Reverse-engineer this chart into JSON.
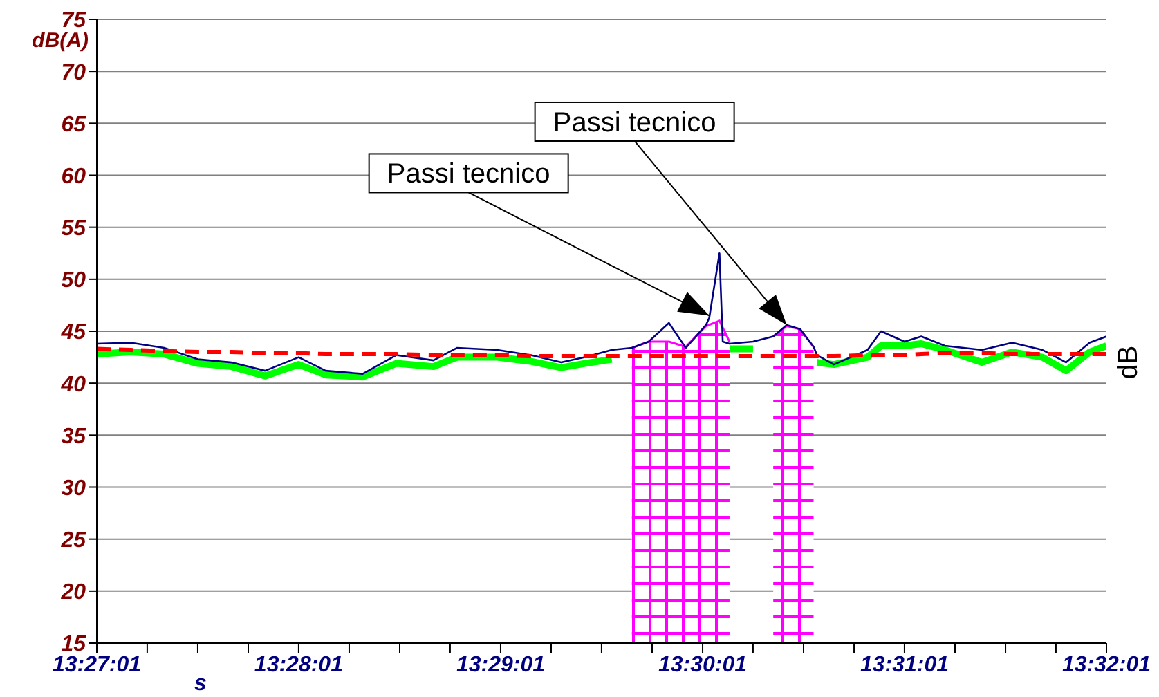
{
  "chart_data": {
    "type": "line",
    "xlabel": "s",
    "ylabel": "dB(A)",
    "y2label": "dB",
    "xlim": [
      13.45028,
      13.53361
    ],
    "ylim": [
      15,
      75
    ],
    "xticks": [
      {
        "value": 13.45028,
        "label": "13:27:01"
      },
      {
        "value": 13.45444,
        "label": null
      },
      {
        "value": 13.45861,
        "label": null
      },
      {
        "value": 13.46278,
        "label": null
      },
      {
        "value": 13.46694,
        "label": "13:28:01"
      },
      {
        "value": 13.47111,
        "label": null
      },
      {
        "value": 13.47528,
        "label": null
      },
      {
        "value": 13.47944,
        "label": null
      },
      {
        "value": 13.48361,
        "label": "13:29:01"
      },
      {
        "value": 13.48778,
        "label": null
      },
      {
        "value": 13.49194,
        "label": null
      },
      {
        "value": 13.49611,
        "label": null
      },
      {
        "value": 13.50028,
        "label": "13:30:01"
      },
      {
        "value": 13.50444,
        "label": null
      },
      {
        "value": 13.50861,
        "label": null
      },
      {
        "value": 13.51278,
        "label": null
      },
      {
        "value": 13.51694,
        "label": "13:31:01"
      },
      {
        "value": 13.52111,
        "label": null
      },
      {
        "value": 13.52528,
        "label": null
      },
      {
        "value": 13.52944,
        "label": null
      },
      {
        "value": 13.53361,
        "label": "13:32:01"
      }
    ],
    "yticks": [
      15,
      20,
      25,
      30,
      35,
      40,
      45,
      50,
      55,
      60,
      65,
      70,
      75
    ],
    "grid": true,
    "marker": "none",
    "x": [
      13.45028,
      13.45306,
      13.45583,
      13.45861,
      13.46139,
      13.46417,
      13.46694,
      13.46917,
      13.47222,
      13.475,
      13.47806,
      13.48,
      13.48333,
      13.48611,
      13.48861,
      13.49056,
      13.49278,
      13.49444,
      13.49583,
      13.4975,
      13.49889,
      13.50056,
      13.50083,
      13.50167,
      13.50194,
      13.5025,
      13.50444,
      13.50611,
      13.50722,
      13.50833,
      13.50944,
      13.50972,
      13.51111,
      13.51389,
      13.515,
      13.51694,
      13.51833,
      13.52028,
      13.52333,
      13.52583,
      13.52833,
      13.53028,
      13.53222,
      13.53361
    ],
    "series": [
      {
        "type": "area",
        "color": "#ff00ff",
        "x": [
          13.49444,
          13.49583,
          13.4975,
          13.49889,
          13.50056,
          13.50167,
          13.5025
        ],
        "values": [
          43.4,
          44.0,
          44.0,
          43.5,
          45.5,
          46.0,
          44.0
        ]
      },
      {
        "type": "area",
        "color": "#ff00ff",
        "x": [
          13.50611,
          13.50722,
          13.50833,
          13.50944
        ],
        "values": [
          44.5,
          45.5,
          45.2,
          43.5
        ]
      },
      {
        "color": "#00ff00",
        "line_style": "solid",
        "values": [
          42.8,
          43.0,
          42.8,
          41.9,
          41.6,
          40.7,
          41.8,
          40.8,
          40.6,
          41.9,
          41.6,
          42.5,
          42.5,
          42.1,
          41.5,
          41.9,
          42.3,
          null,
          null,
          null,
          null,
          null,
          null,
          null,
          null,
          43.3,
          43.3,
          null,
          null,
          null,
          null,
          42.0,
          41.8,
          42.5,
          43.6,
          43.6,
          43.8,
          43.2,
          42.0,
          43.0,
          42.5,
          41.2,
          43.0,
          43.6
        ]
      },
      {
        "color": "#000080",
        "line_style": "solid",
        "values": [
          43.8,
          43.9,
          43.4,
          42.3,
          42.0,
          41.2,
          42.5,
          41.2,
          40.9,
          42.7,
          42.2,
          43.4,
          43.2,
          42.7,
          42.0,
          42.5,
          43.2,
          43.4,
          44.0,
          45.8,
          43.4,
          45.6,
          46.3,
          52.5,
          44.0,
          43.8,
          44.0,
          44.5,
          45.6,
          45.2,
          43.5,
          42.7,
          41.8,
          43.2,
          45.0,
          44.0,
          44.5,
          43.6,
          43.2,
          43.9,
          43.2,
          42.0,
          43.9,
          44.5
        ]
      },
      {
        "color": "#ff0000",
        "line_style": "dashed",
        "values": [
          43.3,
          43.2,
          43.1,
          43.0,
          43.0,
          42.9,
          42.9,
          42.8,
          42.8,
          42.8,
          42.7,
          42.7,
          42.7,
          42.6,
          42.6,
          42.6,
          42.6,
          42.6,
          42.6,
          42.6,
          42.6,
          42.6,
          42.6,
          42.6,
          42.6,
          42.6,
          42.6,
          42.6,
          42.6,
          42.6,
          42.6,
          42.6,
          42.6,
          42.7,
          42.7,
          42.7,
          42.8,
          42.9,
          42.9,
          42.8,
          42.8,
          42.8,
          42.8,
          42.8
        ]
      }
    ],
    "annotations": [
      {
        "text": "Passi tecnico",
        "x": 13.50083,
        "y": 46.5
      },
      {
        "text": "Passi tecnico",
        "x": 13.50722,
        "y": 45.6
      }
    ]
  }
}
